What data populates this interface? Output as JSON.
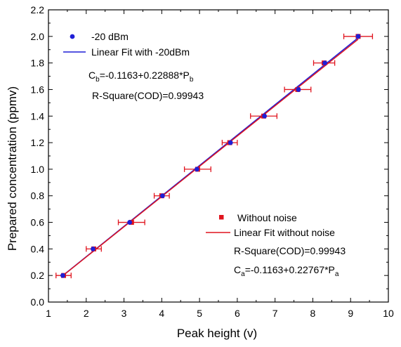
{
  "chart_data": {
    "type": "scatter",
    "xlabel": "Peak height (v)",
    "ylabel": "Prepared concentration (ppmv)",
    "xlim": [
      1,
      10
    ],
    "ylim": [
      0.0,
      2.2
    ],
    "xticks": [
      "1",
      "2",
      "3",
      "4",
      "5",
      "6",
      "7",
      "8",
      "9",
      "10"
    ],
    "yticks": [
      "0.0",
      "0.2",
      "0.4",
      "0.6",
      "0.8",
      "1.0",
      "1.2",
      "1.4",
      "1.6",
      "1.8",
      "2.0",
      "2.2"
    ],
    "grid": false,
    "series": [
      {
        "name": "-20 dBm",
        "marker": "circle",
        "color": "#1f1fd6",
        "points": [
          {
            "x": 1.38,
            "y": 0.2
          },
          {
            "x": 2.18,
            "y": 0.4
          },
          {
            "x": 3.15,
            "y": 0.6
          },
          {
            "x": 4.02,
            "y": 0.8
          },
          {
            "x": 4.93,
            "y": 1.0
          },
          {
            "x": 5.82,
            "y": 1.2
          },
          {
            "x": 6.72,
            "y": 1.4
          },
          {
            "x": 7.62,
            "y": 1.6
          },
          {
            "x": 8.32,
            "y": 1.8
          },
          {
            "x": 9.2,
            "y": 2.0
          }
        ]
      },
      {
        "name": "Without noise",
        "marker": "square",
        "color": "#e0141e",
        "points": [
          {
            "x": 1.4,
            "y": 0.2,
            "xerr": 0.2
          },
          {
            "x": 2.2,
            "y": 0.4,
            "xerr": 0.2
          },
          {
            "x": 3.2,
            "y": 0.6,
            "xerr": 0.35
          },
          {
            "x": 4.0,
            "y": 0.8,
            "xerr": 0.2
          },
          {
            "x": 4.95,
            "y": 1.0,
            "xerr": 0.35
          },
          {
            "x": 5.8,
            "y": 1.2,
            "xerr": 0.2
          },
          {
            "x": 6.7,
            "y": 1.4,
            "xerr": 0.35
          },
          {
            "x": 7.6,
            "y": 1.6,
            "xerr": 0.35
          },
          {
            "x": 8.3,
            "y": 1.8,
            "xerr": 0.28
          },
          {
            "x": 9.2,
            "y": 2.0,
            "xerr": 0.38
          }
        ]
      }
    ],
    "fits": [
      {
        "name": "Linear Fit with -20dBm",
        "intercept": -0.1163,
        "slope": 0.22888,
        "color": "#1f1fd6"
      },
      {
        "name": "Linear Fit without noise",
        "intercept": -0.1163,
        "slope": 0.22767,
        "color": "#e0141e"
      }
    ],
    "legend_top": {
      "placement": "top-left",
      "marker_label": "-20 dBm",
      "line_label": "Linear Fit with -20dBm",
      "equation": {
        "lhs": "C",
        "lhs_sub": "b",
        "rhs": "=-0.1163+0.22888*P",
        "rhs_sub": "b"
      },
      "r_square": "R-Square(COD)=0.99943"
    },
    "legend_bottom": {
      "placement": "bottom-right",
      "marker_label": "Without noise",
      "line_label": "Linear Fit without noise",
      "r_square": "R-Square(COD)=0.99943",
      "equation": {
        "lhs": "C",
        "lhs_sub": "a",
        "rhs": "=-0.1163+0.22767*P",
        "rhs_sub": "a"
      }
    }
  }
}
